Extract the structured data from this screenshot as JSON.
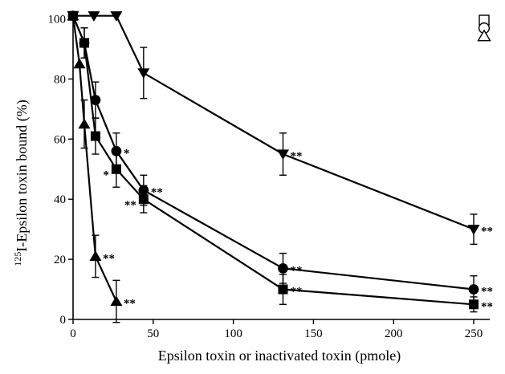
{
  "chart_data": {
    "type": "line",
    "xlabel": "Epsilon toxin or inactivated toxin (pmole)",
    "ylabel_superscript": "125",
    "ylabel": "I-Epsilon toxin bound (%)",
    "xlim": [
      0,
      260
    ],
    "ylim": [
      0,
      102
    ],
    "xticks": [
      0,
      50,
      100,
      150,
      200,
      250
    ],
    "yticks": [
      0,
      20,
      40,
      60,
      80,
      100
    ],
    "grid": false,
    "series": [
      {
        "marker": "triangle-down",
        "points": [
          {
            "x": 0,
            "y": 101,
            "err": 0,
            "sig": ""
          },
          {
            "x": 13,
            "y": 101,
            "err": 0,
            "sig": ""
          },
          {
            "x": 27,
            "y": 101,
            "err": 0,
            "sig": ""
          },
          {
            "x": 44,
            "y": 82,
            "err": 8.5,
            "sig": ""
          },
          {
            "x": 131,
            "y": 55,
            "err": 7,
            "sig": "**"
          },
          {
            "x": 250,
            "y": 30,
            "err": 5,
            "sig": "**"
          }
        ]
      },
      {
        "marker": "circle",
        "points": [
          {
            "x": 0,
            "y": 101,
            "err": 0,
            "sig": ""
          },
          {
            "x": 7,
            "y": 92,
            "err": 5,
            "sig": ""
          },
          {
            "x": 14,
            "y": 73,
            "err": 6,
            "sig": ""
          },
          {
            "x": 27,
            "y": 56,
            "err": 6,
            "sig": "*"
          },
          {
            "x": 44,
            "y": 43,
            "err": 5,
            "sig": "**"
          },
          {
            "x": 131,
            "y": 17,
            "err": 5,
            "sig": "**"
          },
          {
            "x": 250,
            "y": 10,
            "err": 4.5,
            "sig": "**"
          }
        ]
      },
      {
        "marker": "square",
        "points": [
          {
            "x": 0,
            "y": 101,
            "err": 0,
            "sig": ""
          },
          {
            "x": 7,
            "y": 92,
            "err": 5,
            "sig": ""
          },
          {
            "x": 14,
            "y": 61,
            "err": 6,
            "sig": ""
          },
          {
            "x": 27,
            "y": 50,
            "err": 6,
            "sig": "*"
          },
          {
            "x": 44,
            "y": 40,
            "err": 4.5,
            "sig": "**"
          },
          {
            "x": 131,
            "y": 10,
            "err": 5,
            "sig": "**"
          },
          {
            "x": 250,
            "y": 5,
            "err": 2.5,
            "sig": "**"
          }
        ]
      },
      {
        "marker": "triangle-up",
        "points": [
          {
            "x": 0,
            "y": 101,
            "err": 0,
            "sig": ""
          },
          {
            "x": 4,
            "y": 85,
            "err": 0,
            "sig": ""
          },
          {
            "x": 7,
            "y": 65,
            "err": 8,
            "sig": ""
          },
          {
            "x": 14,
            "y": 21,
            "err": 7,
            "sig": "**"
          },
          {
            "x": 27,
            "y": 6,
            "err": 7,
            "sig": "**"
          }
        ]
      }
    ],
    "legend": {
      "placement": "top-right",
      "symbols": [
        "square-open",
        "circle-open",
        "triangle-up-open"
      ]
    }
  }
}
